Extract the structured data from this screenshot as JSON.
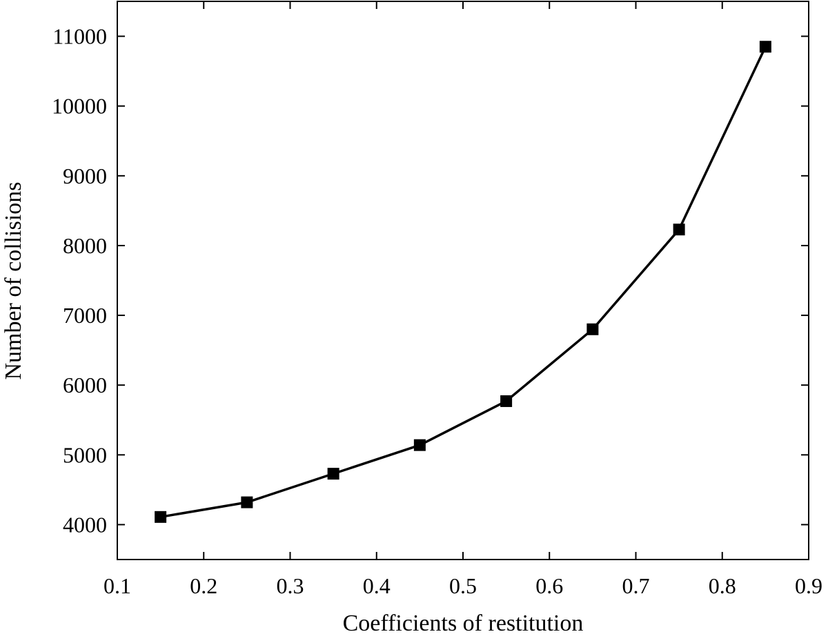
{
  "chart_data": {
    "type": "line",
    "title": "",
    "xlabel": "Coefficients of restitution",
    "ylabel": "Number of collisions",
    "xlim": [
      0.1,
      0.9
    ],
    "ylim": [
      3500,
      11500
    ],
    "x_ticks": [
      0.1,
      0.2,
      0.3,
      0.4,
      0.5,
      0.6,
      0.7,
      0.8,
      0.9
    ],
    "x_tick_labels": [
      "0.1",
      "0.2",
      "0.3",
      "0.4",
      "0.5",
      "0.6",
      "0.7",
      "0.8",
      "0.9"
    ],
    "y_ticks": [
      4000,
      5000,
      6000,
      7000,
      8000,
      9000,
      10000,
      11000
    ],
    "y_tick_labels": [
      "4000",
      "5000",
      "6000",
      "7000",
      "8000",
      "9000",
      "10000",
      "11000"
    ],
    "grid": false,
    "legend": "none",
    "marker": "square",
    "color": "#000000",
    "series": [
      {
        "x": [
          0.15,
          0.25,
          0.35,
          0.45,
          0.55,
          0.65,
          0.75,
          0.85
        ],
        "y": [
          4110,
          4320,
          4730,
          5140,
          5770,
          6800,
          8230,
          10850
        ]
      }
    ]
  }
}
